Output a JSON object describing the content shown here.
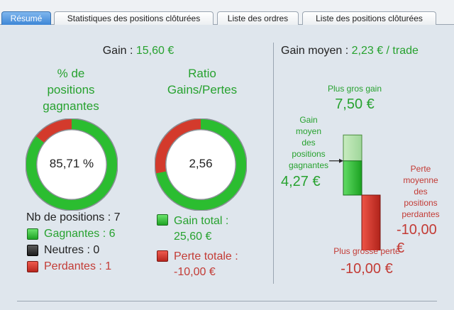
{
  "tabs": [
    {
      "label": "Résumé",
      "active": true
    },
    {
      "label": "Statistiques des positions clôturées",
      "active": false
    },
    {
      "label": "Liste des ordres",
      "active": false
    },
    {
      "label": "Liste des positions clôturées",
      "active": false
    }
  ],
  "summary": {
    "gain_label": "Gain :",
    "gain_value": "15,60 €",
    "gain_moyen_label": "Gain moyen :",
    "gain_moyen_value": "2,23 € / trade"
  },
  "win_rate": {
    "title_line1": "% de",
    "title_line2": "positions",
    "title_line3": "gagnantes",
    "value_text": "85,71 %",
    "fraction": 0.8571
  },
  "ratio": {
    "title_line1": "Ratio",
    "title_line2": "Gains/Pertes",
    "value_text": "2,56",
    "gain_total": 25.6,
    "perte_totale": 10.0
  },
  "positions": {
    "nb_label": "Nb de positions : 7",
    "gagnantes": "Gagnantes : 6",
    "neutres": "Neutres : 0",
    "perdantes": "Perdantes : 1"
  },
  "totals": {
    "gain_total_line1": "Gain total :",
    "gain_total_line2": "25,60 €",
    "perte_totale_line1": "Perte totale :",
    "perte_totale_line2": "-10,00 €"
  },
  "bars": {
    "plus_gros_gain_label": "Plus gros gain",
    "plus_gros_gain_value": "7,50 €",
    "gain_moyen_line1": "Gain",
    "gain_moyen_line2": "moyen",
    "gain_moyen_line3": "des",
    "gain_moyen_line4": "positions",
    "gain_moyen_line5": "gagnantes",
    "gain_moyen_value": "4,27 €",
    "perte_moyenne_line1": "Perte",
    "perte_moyenne_line2": "moyenne",
    "perte_moyenne_line3": "des",
    "perte_moyenne_line4": "positions",
    "perte_moyenne_line5": "perdantes",
    "perte_moyenne_value": "-10,00 €",
    "plus_grosse_perte_label": "Plus grosse perte",
    "plus_grosse_perte_value": "-10,00 €",
    "max_gain": 7.5,
    "avg_gain": 4.27,
    "avg_loss": 10.0,
    "max_loss": 10.0
  },
  "colors": {
    "green": "#27a22f",
    "red": "#c33b35",
    "tab_active": "#3d86d6"
  }
}
